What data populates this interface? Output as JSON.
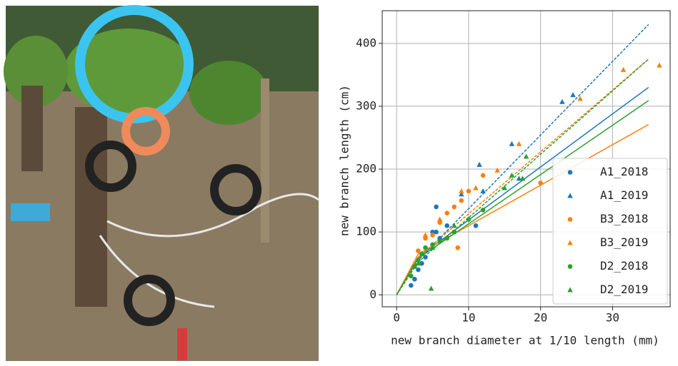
{
  "chart_data": {
    "type": "scatter",
    "xlabel": "new branch diameter at 1/10 length (mm)",
    "ylabel": "new branch length (cm)",
    "xlim": [
      -2,
      38
    ],
    "ylim": [
      -19,
      452
    ],
    "xticks": [
      0,
      10,
      20,
      30
    ],
    "yticks": [
      0,
      100,
      200,
      300,
      400
    ],
    "grid": true,
    "legend": "lower right",
    "series": [
      {
        "name": "A1_2018",
        "color": "#1f77b4",
        "marker": "circle",
        "x": [
          2,
          2.5,
          3,
          4,
          5,
          5.5,
          6,
          7,
          8,
          11,
          5.5,
          3.5
        ],
        "values": [
          15,
          25,
          40,
          60,
          100,
          140,
          90,
          110,
          100,
          110,
          100,
          50
        ]
      },
      {
        "name": "A1_2019",
        "color": "#1f77b4",
        "marker": "triangle",
        "x": [
          11.5,
          16,
          23,
          24.5,
          9,
          12,
          17
        ],
        "values": [
          207,
          240,
          307,
          318,
          160,
          165,
          185
        ]
      },
      {
        "name": "B3_2018",
        "color": "#ff7f0e",
        "marker": "circle",
        "x": [
          3,
          4,
          5,
          6,
          7,
          8,
          9,
          10,
          12,
          20,
          8.5
        ],
        "values": [
          70,
          90,
          95,
          115,
          130,
          140,
          150,
          165,
          190,
          178,
          75
        ]
      },
      {
        "name": "B3_2019",
        "color": "#ff7f0e",
        "marker": "triangle",
        "x": [
          4,
          6,
          9,
          11,
          14,
          17,
          25.5,
          31.5,
          36.5
        ],
        "values": [
          95,
          120,
          165,
          170,
          198,
          240,
          312,
          358,
          365
        ]
      },
      {
        "name": "D2_2018",
        "color": "#2ca02c",
        "marker": "circle",
        "x": [
          2,
          2.5,
          3,
          3.5,
          4,
          5,
          6,
          7,
          8,
          10,
          12
        ],
        "values": [
          30,
          45,
          55,
          65,
          75,
          80,
          85,
          90,
          100,
          120,
          135
        ]
      },
      {
        "name": "D2_2019",
        "color": "#2ca02c",
        "marker": "triangle",
        "x": [
          4.8,
          3,
          5,
          8,
          15,
          16,
          18,
          17.5
        ],
        "values": [
          10,
          50,
          75,
          110,
          170,
          190,
          220,
          185
        ]
      }
    ],
    "fits": [
      {
        "color": "#1f77b4",
        "dash": false,
        "x": [
          0,
          3,
          35
        ],
        "values": [
          0,
          60,
          330
        ]
      },
      {
        "color": "#1f77b4",
        "dash": true,
        "x": [
          0,
          3,
          35
        ],
        "values": [
          0,
          55,
          430
        ]
      },
      {
        "color": "#ff7f0e",
        "dash": false,
        "x": [
          0,
          3,
          35
        ],
        "values": [
          0,
          65,
          271
        ]
      },
      {
        "color": "#ff7f0e",
        "dash": true,
        "x": [
          0,
          3,
          35
        ],
        "values": [
          0,
          60,
          375
        ]
      },
      {
        "color": "#2ca02c",
        "dash": false,
        "x": [
          0,
          3,
          35
        ],
        "values": [
          0,
          58,
          309
        ]
      },
      {
        "color": "#2ca02c",
        "dash": true,
        "x": [
          0,
          3,
          35
        ],
        "values": [
          0,
          52,
          375
        ]
      }
    ]
  }
}
